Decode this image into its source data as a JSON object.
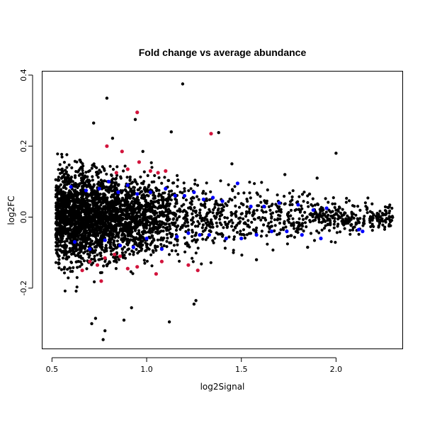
{
  "chart_data": {
    "type": "scatter",
    "title": "Fold change vs average abundance",
    "xlabel": "log2Signal",
    "ylabel": "log2FC",
    "xlim": [
      0.45,
      2.35
    ],
    "ylim": [
      -0.37,
      0.41
    ],
    "x_ticks": [
      0.5,
      1.0,
      1.5,
      2.0
    ],
    "x_tick_labels": [
      "0.5",
      "1.0",
      "1.5",
      "2.0"
    ],
    "y_ticks": [
      -0.2,
      0.0,
      0.2,
      0.4
    ],
    "y_tick_labels": [
      "-0.2",
      "0.0",
      "0.2",
      "0.4"
    ],
    "grid": false,
    "legend": "none",
    "series": [
      {
        "color": "#000000",
        "description_points": "bulk of genes (dense cloud funnelling from wide spread at low signal to narrow at high signal)",
        "x": [
          0.79,
          1.19,
          0.82,
          0.94,
          0.72,
          1.38,
          1.13,
          0.98,
          2.0,
          1.26,
          0.78,
          0.71,
          0.88,
          1.12,
          1.85,
          0.77,
          0.73,
          1.25,
          0.92,
          2.28,
          2.23,
          1.86,
          1.58,
          1.45,
          1.9,
          1.73
        ],
        "y": [
          0.335,
          0.375,
          0.222,
          0.275,
          0.265,
          0.238,
          0.24,
          0.185,
          0.18,
          -0.235,
          -0.32,
          -0.3,
          -0.29,
          -0.295,
          -0.085,
          -0.345,
          -0.285,
          -0.245,
          -0.255,
          -0.025,
          -0.015,
          0.065,
          -0.12,
          0.15,
          0.11,
          0.12
        ]
      },
      {
        "color": "#0000ff",
        "description_points": "significant (blue)",
        "x": [
          0.6,
          0.68,
          0.75,
          0.8,
          0.85,
          0.9,
          0.95,
          1.02,
          1.1,
          1.15,
          1.2,
          1.25,
          1.3,
          1.35,
          1.4,
          1.48,
          1.55,
          1.62,
          1.7,
          1.8,
          1.88,
          1.95,
          2.12,
          0.62,
          0.7,
          0.78,
          0.86,
          0.93,
          1.0,
          1.08,
          1.16,
          1.22,
          1.28,
          1.33,
          1.42,
          1.5,
          1.58,
          1.66,
          1.74,
          1.82,
          1.92,
          2.14
        ],
        "y": [
          0.085,
          0.075,
          0.08,
          0.1,
          0.07,
          0.09,
          0.065,
          0.07,
          0.08,
          0.06,
          0.06,
          0.07,
          0.05,
          0.055,
          0.045,
          0.095,
          0.03,
          0.03,
          0.04,
          0.035,
          0.02,
          0.025,
          -0.035,
          -0.07,
          -0.09,
          -0.065,
          -0.08,
          -0.085,
          -0.06,
          -0.09,
          -0.055,
          -0.045,
          -0.05,
          -0.05,
          -0.06,
          -0.06,
          -0.05,
          -0.04,
          -0.04,
          -0.05,
          -0.06,
          -0.04
        ]
      },
      {
        "color": "#d2143c",
        "description_points": "top hits (red)",
        "x": [
          0.95,
          1.34,
          0.79,
          0.87,
          0.9,
          0.96,
          1.02,
          1.06,
          1.1,
          0.84,
          0.7,
          0.74,
          0.78,
          0.83,
          0.86,
          0.9,
          0.95,
          1.05,
          1.08,
          1.22,
          1.27,
          0.76,
          0.66
        ],
        "y": [
          0.295,
          0.235,
          0.2,
          0.185,
          0.135,
          0.155,
          0.13,
          0.125,
          0.13,
          0.125,
          -0.125,
          -0.135,
          -0.115,
          -0.105,
          -0.11,
          -0.145,
          -0.14,
          -0.16,
          -0.125,
          -0.135,
          -0.15,
          -0.18,
          -0.15
        ]
      }
    ]
  }
}
